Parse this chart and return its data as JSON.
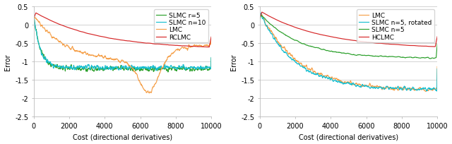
{
  "xlim": [
    0,
    10000
  ],
  "ylim": [
    -2.5,
    0.5
  ],
  "xlabel": "Cost (directional derivatives)",
  "ylabel": "Error",
  "yticks": [
    0.5,
    0.0,
    -0.5,
    -1.0,
    -1.5,
    -2.0,
    -2.5
  ],
  "xticks": [
    0,
    2000,
    4000,
    6000,
    8000,
    10000
  ],
  "plot1": {
    "legend": [
      "LMC",
      "SLMC r=5",
      "SLMC n=10",
      "RCLMC"
    ],
    "colors": [
      "#f5a04a",
      "#2ca02c",
      "#17becf",
      "#d62728"
    ]
  },
  "plot2": {
    "legend": [
      "LMC",
      "SLMC n=5, rotated",
      "SLMC n=5",
      "HCLMC"
    ],
    "colors": [
      "#f5a04a",
      "#17becf",
      "#2ca02c",
      "#d62728"
    ]
  },
  "background_color": "#ffffff",
  "grid_color": "#cccccc",
  "linewidth": 0.85,
  "fontsize": 7
}
